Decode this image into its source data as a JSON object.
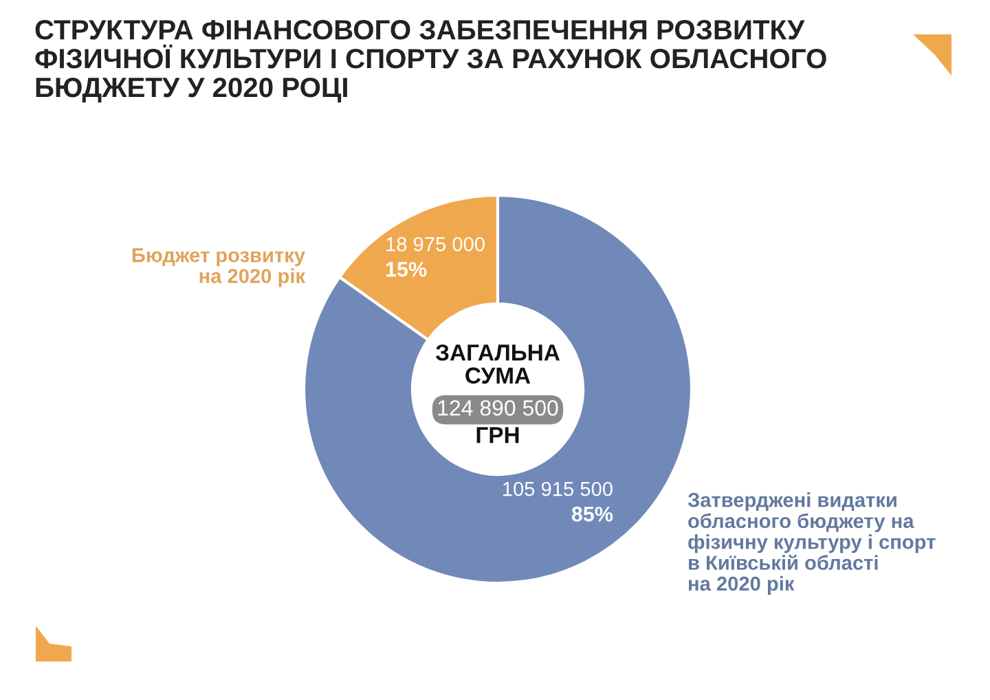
{
  "chart_data": {
    "type": "donut",
    "title": "СТРУКТУРА ФІНАНСОВОГО ЗАБЕЗПЕЧЕННЯ РОЗВИТКУ\nФІЗИЧНОЇ КУЛЬТУРИ І СПОРТУ ЗА РАХУНОК ОБЛАСНОГО\nБЮДЖЕТУ У 2020 РОЦІ",
    "categories": [
      "Бюджет розвитку\nна 2020 рік",
      "Затверджені видатки\nобласного бюджету на\nфізичну культуру і спорт\nв Київській області\nна 2020 рік"
    ],
    "values": [
      18975000,
      105915500
    ],
    "colors": [
      "#f0a84e",
      "#7189b8"
    ],
    "value_labels": [
      "18 975 000\n15%",
      "105 915 500\n85%"
    ],
    "annotations": [
      "ЗАГАЛЬНА\nСУМА",
      "124 890 500",
      "ГРН"
    ]
  }
}
